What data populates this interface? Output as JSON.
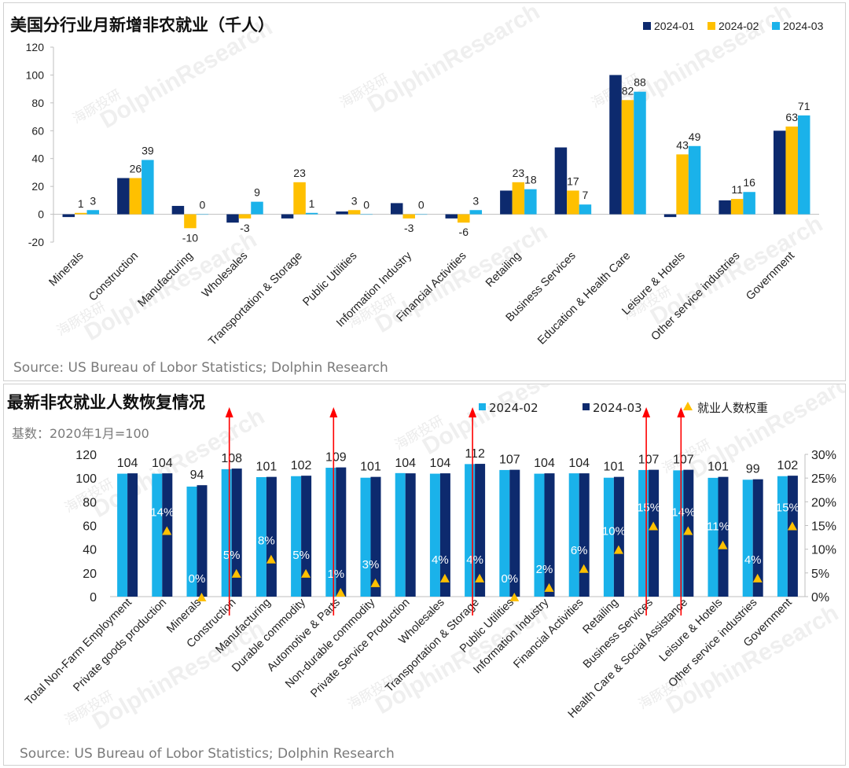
{
  "chart_data": [
    {
      "type": "bar",
      "title": "美国分行业月新增非农就业（千人）",
      "source": "Source: US Bureau of Lobor Statistics; Dolphin Research",
      "ylim": [
        -20,
        120
      ],
      "yticks": [
        "120",
        "100",
        "80",
        "60",
        "40",
        "20",
        "0",
        "-20"
      ],
      "categories": [
        "Minerals",
        "Construction",
        "Manufacturing",
        "Wholesales",
        "Transportation & Storage",
        "Public Utilities",
        "Information Industry",
        "Financial Activities",
        "Retailing",
        "Business Services",
        "Education & Health Care",
        "Leisure & Hotels",
        "Other service industries",
        "Government"
      ],
      "series": [
        {
          "name": "2024-01",
          "color": "#0d2a6e",
          "values": [
            -2,
            26,
            6,
            -6,
            -3,
            2,
            8,
            -3,
            17,
            48,
            100,
            -2,
            10,
            60
          ]
        },
        {
          "name": "2024-02",
          "color": "#ffc000",
          "values": [
            1,
            26,
            -10,
            -3,
            23,
            3,
            -3,
            -6,
            23,
            17,
            82,
            43,
            11,
            63
          ]
        },
        {
          "name": "2024-03",
          "color": "#1ab2ea",
          "values": [
            3,
            39,
            0,
            9,
            1,
            0,
            0,
            3,
            18,
            7,
            88,
            49,
            16,
            71
          ]
        }
      ],
      "data_labels": [
        [
          "1",
          "3"
        ],
        [
          "26",
          "39"
        ],
        [
          "-10",
          "0"
        ],
        [
          "-3",
          "9"
        ],
        [
          "23",
          "1"
        ],
        [
          "3",
          "0"
        ],
        [
          "-3",
          "0"
        ],
        [
          "-6",
          "3"
        ],
        [
          "23",
          "18"
        ],
        [
          "17",
          "7"
        ],
        [
          "82",
          "88"
        ],
        [
          "43",
          "49"
        ],
        [
          "11",
          "16"
        ],
        [
          "63",
          "71"
        ]
      ]
    },
    {
      "type": "bar",
      "title": "最新非农就业人数恢复情况",
      "subtitle": "基数：2020年1月=100",
      "source": "Source: US Bureau of Lobor Statistics; Dolphin Research",
      "ylim": [
        0,
        120
      ],
      "yticks": [
        "120",
        "100",
        "80",
        "60",
        "40",
        "20",
        "0"
      ],
      "y2lim": [
        0,
        30
      ],
      "y2ticks": [
        "30%",
        "25%",
        "20%",
        "15%",
        "10%",
        "5%",
        "0%"
      ],
      "categories": [
        "Total Non-Farm Employment",
        "Private goods production",
        "Minerals",
        "Construction",
        "Manufacturing",
        "Durable commodity",
        "Automotive & Parts",
        "Non-durable commodity",
        "Private Service Production",
        "Wholesales",
        "Transportation & Storage",
        "Public Utilities",
        "Information Industry",
        "Financial Activities",
        "Retailing",
        "Business Services",
        "Health Care & Social Assistance",
        "Leisure & Hotels",
        "Other service industries",
        "Government"
      ],
      "series": [
        {
          "name": "2024-02",
          "color": "#1ab2ea",
          "values": [
            103.7,
            103.7,
            92.8,
            107.5,
            100.8,
            101.6,
            108.7,
            100.3,
            104.2,
            103.7,
            111.8,
            106.8,
            103.7,
            104.0,
            100.3,
            106.8,
            106.5,
            100.2,
            98.6,
            101.6
          ]
        },
        {
          "name": "2024-03",
          "color": "#0d2a6e",
          "values": [
            104,
            104,
            94,
            108,
            101,
            102,
            109,
            101,
            104,
            104,
            112,
            107,
            104,
            104,
            101,
            107,
            107,
            101,
            99,
            102
          ]
        },
        {
          "name": "就业人数权重",
          "color": "#ffc000",
          "axis": "right",
          "values": [
            null,
            14,
            0,
            5,
            8,
            5,
            1,
            3,
            null,
            4,
            4,
            0,
            2,
            6,
            10,
            15,
            14,
            11,
            4,
            15
          ]
        }
      ],
      "data_labels": [
        "104",
        "104",
        "94",
        "108",
        "101",
        "102",
        "109",
        "101",
        "104",
        "104",
        "112",
        "107",
        "104",
        "104",
        "101",
        "107",
        "107",
        "101",
        "99",
        "102"
      ],
      "weight_labels": [
        "",
        "14%",
        "0%",
        "5%",
        "8%",
        "5%",
        "1%",
        "3%",
        "",
        "4%",
        "4%",
        "0%",
        "2%",
        "6%",
        "10%",
        "15%",
        "14%",
        "11%",
        "4%",
        "15%"
      ],
      "highlighted": [
        "Construction",
        "Automotive & Parts",
        "Transportation & Storage",
        "Business Services",
        "Health Care & Social Assistance"
      ],
      "arrow_color": "#ff0000"
    }
  ],
  "watermark": {
    "brand": "DolphinResearch",
    "cn": "海豚投研"
  }
}
